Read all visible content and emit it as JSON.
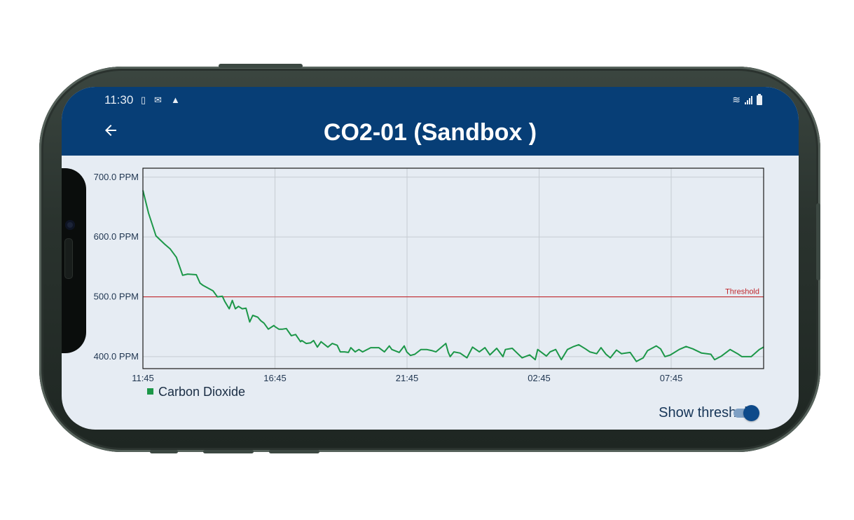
{
  "status_bar": {
    "time": "11:30",
    "left_icons": [
      "sim-icon",
      "cast-icon",
      "warning-icon"
    ],
    "right_icons": [
      "wifi-icon",
      "signal-icon",
      "battery-icon"
    ]
  },
  "header": {
    "title": "CO2-01 (Sandbox )",
    "back_icon": "arrow-left-icon",
    "background_color": "#073e76"
  },
  "chart_data": {
    "type": "line",
    "x_tick_labels": [
      "11:45",
      "16:45",
      "21:45",
      "02:45",
      "07:45"
    ],
    "y_tick_labels": [
      "700.0 PPM",
      "600.0 PPM",
      "500.0 PPM",
      "400.0 PPM"
    ],
    "ylim": [
      380,
      715
    ],
    "xlim": [
      0,
      1
    ],
    "grid": true,
    "legend_position": "bottom-left",
    "threshold": {
      "label": "Threshold",
      "value": 500,
      "color": "#c0282d"
    },
    "series": [
      {
        "name": "Carbon Dioxide",
        "color": "#1c9748",
        "x": [
          0,
          0.009,
          0.021,
          0.035,
          0.044,
          0.054,
          0.064,
          0.072,
          0.086,
          0.092,
          0.097,
          0.113,
          0.12,
          0.128,
          0.132,
          0.139,
          0.144,
          0.149,
          0.154,
          0.16,
          0.166,
          0.172,
          0.177,
          0.185,
          0.19,
          0.195,
          0.202,
          0.211,
          0.213,
          0.219,
          0.225,
          0.231,
          0.239,
          0.246,
          0.254,
          0.256,
          0.263,
          0.27,
          0.275,
          0.281,
          0.287,
          0.298,
          0.305,
          0.313,
          0.318,
          0.325,
          0.331,
          0.335,
          0.342,
          0.348,
          0.354,
          0.367,
          0.38,
          0.389,
          0.397,
          0.401,
          0.413,
          0.421,
          0.425,
          0.431,
          0.438,
          0.448,
          0.457,
          0.466,
          0.472,
          0.488,
          0.492,
          0.495,
          0.501,
          0.511,
          0.522,
          0.531,
          0.542,
          0.551,
          0.559,
          0.57,
          0.58,
          0.584,
          0.595,
          0.604,
          0.611,
          0.623,
          0.632,
          0.636,
          0.65,
          0.656,
          0.665,
          0.674,
          0.684,
          0.694,
          0.702,
          0.713,
          0.72,
          0.731,
          0.738,
          0.746,
          0.753,
          0.763,
          0.771,
          0.785,
          0.795,
          0.806,
          0.813,
          0.827,
          0.834,
          0.841,
          0.85,
          0.864,
          0.875,
          0.886,
          0.9,
          0.915,
          0.921,
          0.932,
          0.946,
          0.958,
          0.965,
          0.98,
          0.993,
          1.0
        ],
        "values": [
          678,
          640,
          602,
          588,
          580,
          566,
          536,
          538,
          537,
          523,
          519,
          510,
          500,
          501,
          492,
          480,
          494,
          480,
          484,
          480,
          481,
          458,
          469,
          466,
          460,
          456,
          446,
          452,
          450,
          446,
          446,
          447,
          435,
          437,
          425,
          427,
          422,
          423,
          427,
          416,
          425,
          416,
          422,
          419,
          408,
          408,
          407,
          415,
          408,
          412,
          408,
          415,
          415,
          408,
          418,
          412,
          407,
          418,
          408,
          402,
          404,
          412,
          412,
          410,
          408,
          422,
          407,
          400,
          408,
          406,
          398,
          416,
          408,
          415,
          403,
          414,
          400,
          412,
          414,
          405,
          398,
          403,
          395,
          412,
          401,
          408,
          412,
          395,
          412,
          417,
          420,
          413,
          408,
          405,
          415,
          404,
          398,
          411,
          405,
          407,
          392,
          398,
          410,
          418,
          413,
          400,
          403,
          412,
          417,
          413,
          406,
          404,
          395,
          401,
          412,
          405,
          400,
          400,
          412,
          416
        ]
      }
    ]
  },
  "controls": {
    "show_threshold_label": "Show threshold",
    "show_threshold_on": true
  }
}
